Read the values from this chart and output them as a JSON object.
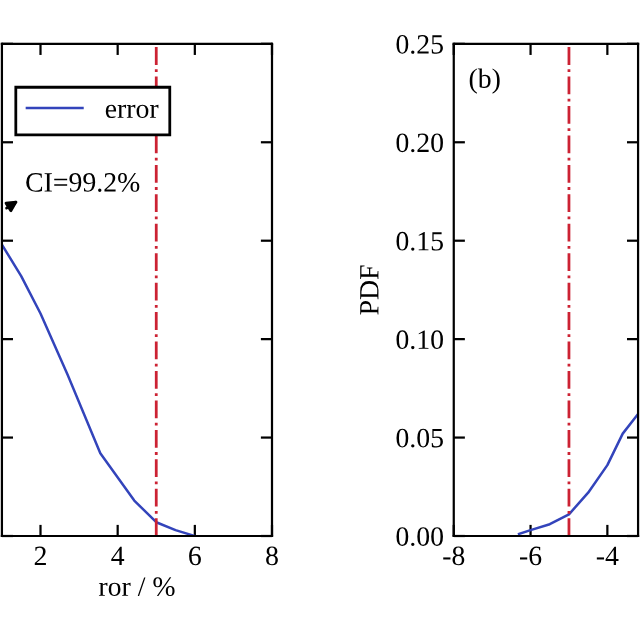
{
  "chart_data": [
    {
      "type": "line",
      "xlabel": "ror / %",
      "xlim": [
        1,
        8
      ],
      "xticks": [
        2,
        4,
        6,
        8
      ],
      "ylim": [
        0,
        0.25
      ],
      "yticks": [
        0,
        0.05,
        0.1,
        0.15,
        0.2,
        0.25
      ],
      "tick_labels": "x",
      "legend": "top left",
      "annotations": [
        "CI=99.2%"
      ],
      "series": [
        {
          "name": "error",
          "color": "#3344bb",
          "x": [
            1,
            1.5,
            2,
            2.7,
            3.55,
            4.43,
            5,
            5.5,
            6
          ],
          "values": [
            0.148,
            0.132,
            0.113,
            0.082,
            0.042,
            0.018,
            0.007,
            0.003,
            0.0
          ]
        }
      ],
      "ref_lines": [
        {
          "axis": "x",
          "value": 5,
          "color": "#cc2233",
          "line_style": "dashdot"
        }
      ]
    },
    {
      "type": "line",
      "ylabel": "PDF",
      "xlim": [
        -8,
        -3.2
      ],
      "xticks": [
        -8,
        -6,
        -4
      ],
      "ylim": [
        0,
        0.25
      ],
      "yticks": [
        {
          "value": 0,
          "label": "0.00"
        },
        {
          "value": 0.05,
          "label": "0.05"
        },
        {
          "value": 0.1,
          "label": "0.10"
        },
        {
          "value": 0.15,
          "label": "0.15"
        },
        {
          "value": 0.2,
          "label": "0.20"
        },
        {
          "value": 0.25,
          "label": "0.25"
        }
      ],
      "annotations": [
        "(b)"
      ],
      "series": [
        {
          "color": "#3344bb",
          "x": [
            -6.3,
            -6,
            -5.5,
            -5,
            -4.5,
            -4,
            -3.6,
            -3.2
          ],
          "values": [
            0.001,
            0.003,
            0.006,
            0.011,
            0.022,
            0.036,
            0.052,
            0.062
          ]
        }
      ],
      "ref_lines": [
        {
          "axis": "x",
          "value": -5,
          "color": "#cc2233",
          "line_style": "dashdot"
        }
      ]
    }
  ]
}
